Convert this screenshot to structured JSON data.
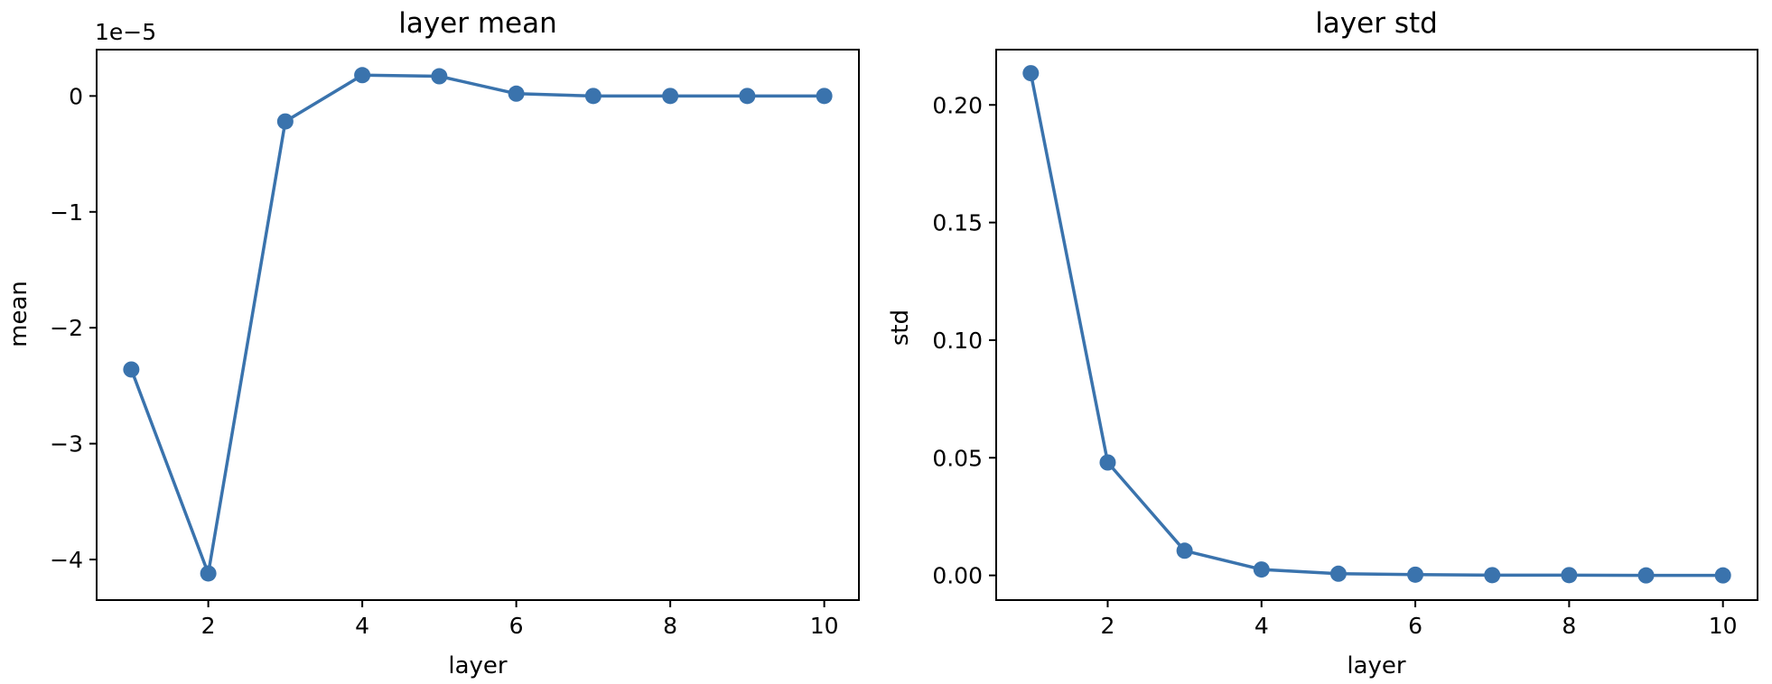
{
  "chart_data": [
    {
      "type": "line",
      "title": "layer mean",
      "xlabel": "layer",
      "ylabel": "mean",
      "offset_label": "1e−5",
      "x": [
        1,
        2,
        3,
        4,
        5,
        6,
        7,
        8,
        9,
        10
      ],
      "series": [
        {
          "values": [
            -2.36,
            -4.12,
            -0.22,
            0.18,
            0.17,
            0.02,
            0.0,
            0.0,
            0.0,
            0.0
          ]
        }
      ],
      "xlim": [
        0.55,
        10.45
      ],
      "ylim": [
        -4.35,
        0.4
      ],
      "xticks": [
        2,
        4,
        6,
        8,
        10
      ],
      "xtick_labels": [
        "2",
        "4",
        "6",
        "8",
        "10"
      ],
      "yticks": [
        0,
        -1,
        -2,
        -3,
        -4
      ],
      "ytick_labels": [
        "0",
        "−1",
        "−2",
        "−3",
        "−4"
      ],
      "grid": false,
      "color": "#3a73ad"
    },
    {
      "type": "line",
      "title": "layer std",
      "xlabel": "layer",
      "ylabel": "std",
      "x": [
        1,
        2,
        3,
        4,
        5,
        6,
        7,
        8,
        9,
        10
      ],
      "series": [
        {
          "values": [
            0.2135,
            0.048,
            0.0105,
            0.0025,
            0.0007,
            0.0003,
            0.0001,
            0.0001,
            0.0,
            0.0
          ]
        }
      ],
      "xlim": [
        0.55,
        10.45
      ],
      "ylim": [
        -0.0105,
        0.2235
      ],
      "xticks": [
        2,
        4,
        6,
        8,
        10
      ],
      "xtick_labels": [
        "2",
        "4",
        "6",
        "8",
        "10"
      ],
      "yticks": [
        0.0,
        0.05,
        0.1,
        0.15,
        0.2
      ],
      "ytick_labels": [
        "0.00",
        "0.05",
        "0.10",
        "0.15",
        "0.20"
      ],
      "grid": false,
      "color": "#3a73ad"
    }
  ]
}
